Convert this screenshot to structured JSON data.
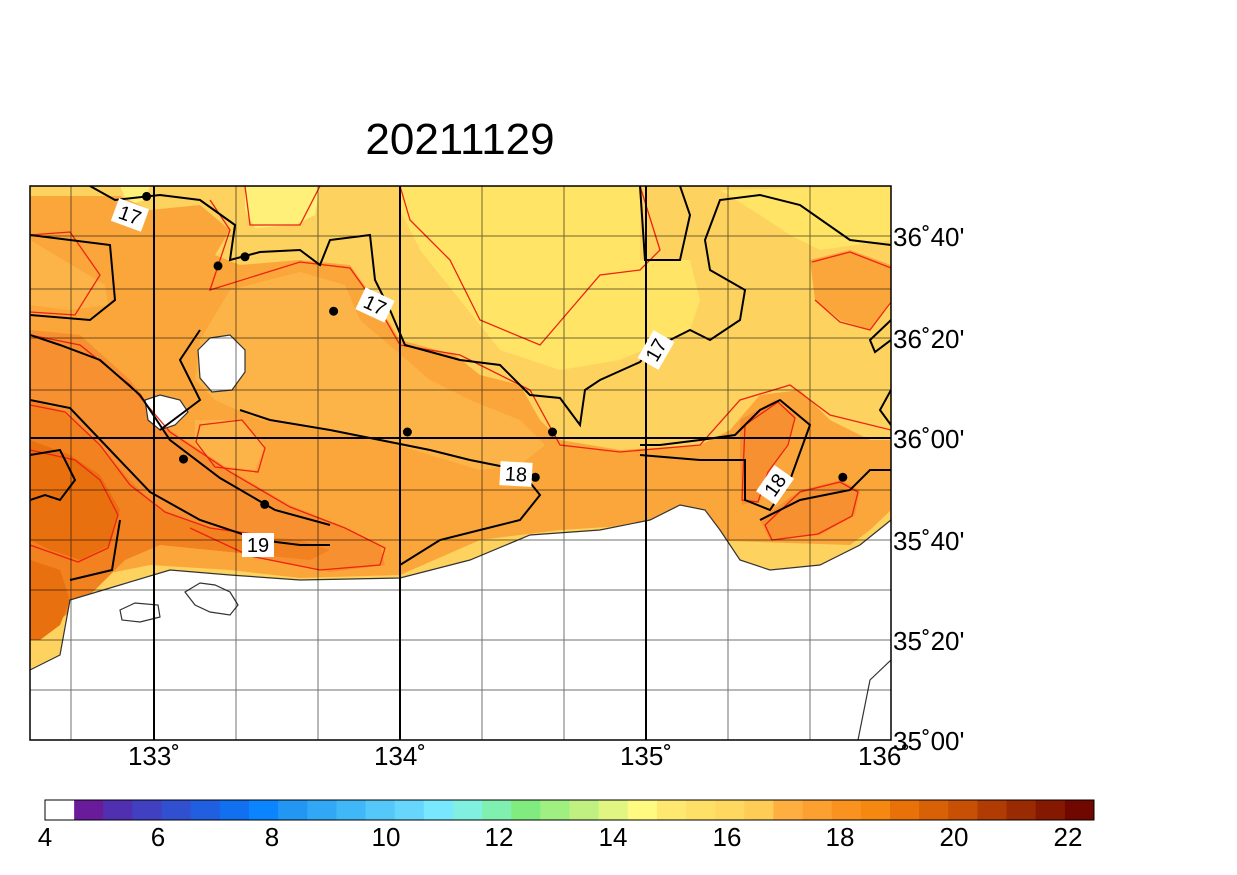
{
  "title": "20211129",
  "map": {
    "longitude_labels": [
      "133˚",
      "134˚",
      "135˚",
      "136˚"
    ],
    "latitude_labels": [
      "36˚40'",
      "36˚20'",
      "36˚00'",
      "35˚40'",
      "35˚20'",
      "35˚00'"
    ],
    "contour_labels": [
      "17",
      "17",
      "17",
      "18",
      "18",
      "19"
    ],
    "stations": [
      {
        "lon": 132.97,
        "lat": 36.8
      },
      {
        "lon": 133.26,
        "lat": 36.57
      },
      {
        "lon": 133.37,
        "lat": 36.6
      },
      {
        "lon": 133.73,
        "lat": 36.42
      },
      {
        "lon": 134.03,
        "lat": 36.02
      },
      {
        "lon": 134.55,
        "lat": 35.87
      },
      {
        "lon": 134.62,
        "lat": 36.02
      },
      {
        "lon": 133.12,
        "lat": 35.93
      },
      {
        "lon": 133.45,
        "lat": 35.78
      },
      {
        "lon": 135.8,
        "lat": 35.87
      }
    ]
  },
  "colorbar": {
    "labels": [
      "4",
      "6",
      "8",
      "10",
      "12",
      "14",
      "16",
      "18",
      "20",
      "22"
    ],
    "colors": [
      "#ffffff",
      "#6a1b9a",
      "#5030b0",
      "#4040c0",
      "#3050d0",
      "#2060e0",
      "#1070f0",
      "#0a84ff",
      "#2196f3",
      "#30a8f5",
      "#40b8f8",
      "#55c8fa",
      "#66d6fc",
      "#78e8ff",
      "#80f0e0",
      "#7ff0b0",
      "#80ec80",
      "#9ff080",
      "#c0f080",
      "#e0f680",
      "#fffb80",
      "#ffe870",
      "#ffe066",
      "#ffd860",
      "#ffcc55",
      "#ffae40",
      "#fca030",
      "#fa9220",
      "#f58810",
      "#e87208",
      "#d86005",
      "#c85004",
      "#b03c03",
      "#9a2a02",
      "#851800",
      "#700800"
    ]
  },
  "field_colors": {
    "c16": "#fff07a",
    "c16b": "#ffe466",
    "c17": "#fdd25e",
    "c175": "#fcb448",
    "c18": "#fba63a",
    "c185": "#f79030",
    "c19": "#f28120",
    "c20": "#e8700e"
  }
}
